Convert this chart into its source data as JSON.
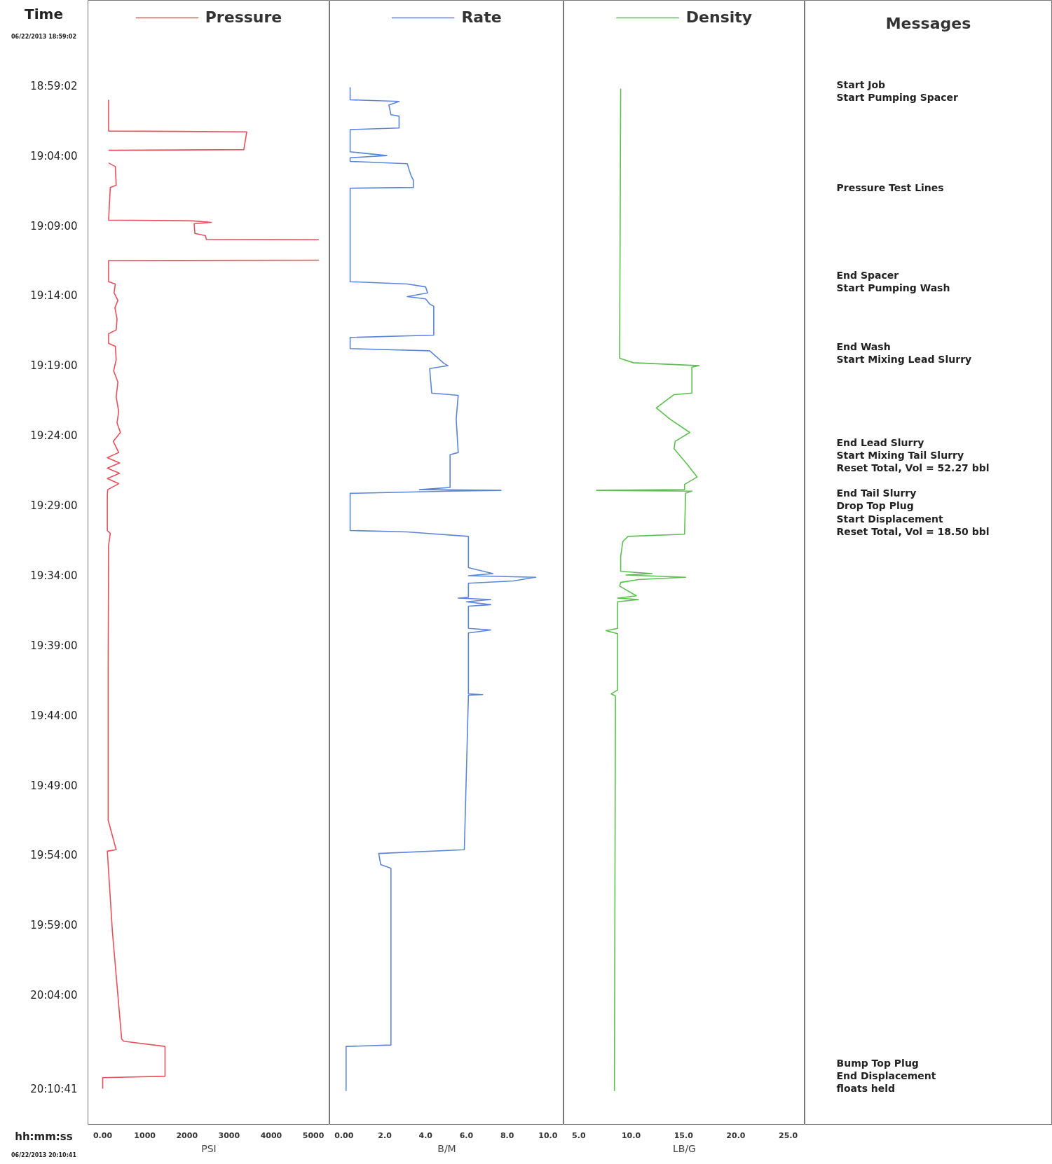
{
  "chart_data": [
    {
      "type": "line",
      "orientation": "horizontal",
      "legend": "top",
      "xlabel": "PSI",
      "xlim": [
        -350,
        5390
      ],
      "xticks": [
        {
          "value": 0,
          "label": "0.00"
        },
        1000,
        2000,
        3000,
        4000,
        5000
      ],
      "ylim": [
        20.2205,
        18.8813
      ],
      "yticks": [
        {
          "value": 18.98389,
          "label": "18:59:02"
        },
        {
          "value": 19.06667,
          "label": "19:04:00"
        },
        {
          "value": 19.15,
          "label": "19:09:00"
        },
        {
          "value": 19.23333,
          "label": "19:14:00"
        },
        {
          "value": 19.31667,
          "label": "19:19:00"
        },
        {
          "value": 19.4,
          "label": "19:24:00"
        },
        {
          "value": 19.48333,
          "label": "19:29:00"
        },
        {
          "value": 19.56667,
          "label": "19:34:00"
        },
        {
          "value": 19.65,
          "label": "19:39:00"
        },
        {
          "value": 19.73333,
          "label": "19:44:00"
        },
        {
          "value": 19.81667,
          "label": "19:49:00"
        },
        {
          "value": 19.9,
          "label": "19:54:00"
        },
        {
          "value": 19.98333,
          "label": "19:59:00"
        },
        {
          "value": 20.06667,
          "label": "20:04:00"
        },
        {
          "value": 20.17806,
          "label": "20:10:41"
        }
      ],
      "annotations": [
        "Time",
        "06/22/2013 18:59:02",
        "hh:mm:ss",
        "06/22/2013 20:10:41"
      ],
      "series": [
        {
          "name": "Pressure",
          "color": "#e8505b",
          "x": [
            18.9998,
            19.037,
            19.0379,
            19.0591,
            19.06,
            19.0675,
            19.075,
            19.0794,
            19.1015,
            19.1042,
            19.1431,
            19.144,
            19.1458,
            19.1475,
            19.159,
            19.1617,
            19.1661,
            19.1665,
            19.178,
            19.1909,
            19.1913,
            19.2165,
            19.2192,
            19.2298,
            19.2387,
            19.2475,
            19.2608,
            19.274,
            19.2785,
            19.29,
            19.2935,
            19.3094,
            19.3227,
            19.336,
            19.3537,
            19.3713,
            19.3846,
            19.3961,
            19.4067,
            19.42,
            19.4262,
            19.4324,
            19.4386,
            19.4448,
            19.451,
            19.4571,
            19.4642,
            19.4704,
            19.5129,
            19.5164,
            19.5306,
            19.6809,
            19.8579,
            19.8932,
            19.895,
            19.9905,
            20.1188,
            20.1214,
            20.1276,
            20.163,
            20.1648,
            20.178
          ],
          "values": [
            140,
            140,
            3420,
            3350,
            140,
            null,
            140,
            300,
            320,
            180,
            140,
            2140,
            2580,
            2170,
            2190,
            2440,
            2460,
            5130,
            null,
            5130,
            140,
            140,
            300,
            270,
            360,
            290,
            340,
            320,
            140,
            140,
            300,
            320,
            260,
            360,
            320,
            380,
            340,
            420,
            250,
            380,
            110,
            400,
            110,
            400,
            110,
            380,
            120,
            110,
            110,
            180,
            140,
            130,
            130,
            320,
            110,
            230,
            450,
            500,
            1480,
            1480,
            0,
            0
          ]
        }
      ]
    },
    {
      "type": "line",
      "orientation": "horizontal",
      "legend": "top",
      "xlabel": "B/M",
      "tick_labels": "x",
      "xlim": [
        -0.7,
        10.78
      ],
      "xticks": [
        {
          "value": 0,
          "label": "0.00"
        },
        {
          "value": 2,
          "label": "2.0"
        },
        {
          "value": 4,
          "label": "4.0"
        },
        {
          "value": 6,
          "label": "6.0"
        },
        {
          "value": 8,
          "label": "8.0"
        },
        {
          "value": 10,
          "label": "10.0"
        }
      ],
      "ylim": [
        20.2205,
        18.8813
      ],
      "series": [
        {
          "name": "Rate",
          "color": "#5b85d9",
          "x": [
            18.9848,
            18.9998,
            19.0016,
            19.006,
            19.0175,
            19.0193,
            19.0334,
            19.0352,
            19.0617,
            19.0662,
            19.0688,
            19.0732,
            19.0759,
            19.0839,
            19.0909,
            19.0954,
            19.1042,
            19.1051,
            19.2165,
            19.2192,
            19.2227,
            19.2298,
            19.2342,
            19.2369,
            19.2431,
            19.2457,
            19.2802,
            19.2829,
            19.2962,
            19.2988,
            19.3138,
            19.3165,
            19.32,
            19.3492,
            19.3519,
            19.3802,
            19.42,
            19.4226,
            19.4616,
            19.4642,
            19.4651,
            19.466,
            19.4686,
            19.5129,
            19.5146,
            19.5199,
            19.5571,
            19.5642,
            19.5668,
            19.5686,
            19.573,
            19.5757,
            19.5925,
            19.5934,
            19.5951,
            19.5978,
            19.6013,
            19.6031,
            19.6296,
            19.6314,
            19.6349,
            19.7075,
            19.7084,
            19.7092,
            19.8932,
            19.8977,
            19.9109,
            19.9154,
            20.1259,
            20.1276,
            20.1807
          ],
          "values": [
            0.3,
            0.3,
            2.7,
            2.2,
            2.3,
            2.7,
            2.7,
            0.3,
            0.3,
            2.1,
            0.3,
            0.3,
            3.1,
            3.2,
            3.3,
            3.4,
            3.4,
            0.3,
            0.3,
            3.1,
            4.0,
            4.1,
            3.1,
            4.0,
            4.2,
            4.4,
            4.4,
            0.3,
            0.3,
            4.2,
            4.9,
            5.1,
            4.2,
            4.3,
            5.6,
            5.5,
            5.6,
            5.2,
            5.2,
            3.7,
            7.7,
            5.2,
            0.3,
            0.3,
            3.1,
            6.1,
            6.1,
            7.3,
            6.1,
            9.4,
            8.3,
            6.1,
            6.1,
            5.6,
            7.2,
            6.0,
            7.2,
            6.1,
            6.1,
            7.2,
            6.1,
            6.1,
            6.8,
            6.1,
            5.9,
            1.7,
            1.8,
            2.3,
            2.3,
            0.1,
            0.1
          ]
        }
      ]
    },
    {
      "type": "line",
      "orientation": "horizontal",
      "legend": "top",
      "xlabel": "LB/G",
      "tick_labels": "x",
      "xlim": [
        3.57,
        26.6
      ],
      "xticks": [
        {
          "value": 5,
          "label": "5.0"
        },
        {
          "value": 10,
          "label": "10.0"
        },
        {
          "value": 15,
          "label": "15.0"
        },
        {
          "value": 20,
          "label": "20.0"
        },
        {
          "value": 25,
          "label": "25.0"
        }
      ],
      "ylim": [
        20.2205,
        18.8813
      ],
      "series": [
        {
          "name": "Density",
          "color": "#5cbf4f",
          "x": [
            18.9865,
            19.3077,
            19.313,
            19.3165,
            19.3183,
            19.3492,
            19.351,
            19.3669,
            19.3802,
            19.3961,
            19.4067,
            19.4156,
            19.4333,
            19.4492,
            19.458,
            19.4642,
            19.4651,
            19.466,
            19.4686,
            19.5173,
            19.5199,
            19.5261,
            19.5438,
            19.5615,
            19.5642,
            19.5659,
            19.5686,
            19.5713,
            19.5748,
            19.5792,
            19.5907,
            19.5934,
            19.5951,
            19.5978,
            19.6296,
            19.6323,
            19.6358,
            19.7031,
            19.7075,
            19.7101,
            20.1807
          ],
          "values": [
            9.0,
            8.9,
            10.2,
            16.5,
            15.8,
            15.8,
            14.1,
            12.4,
            13.7,
            15.6,
            14.2,
            14.1,
            15.3,
            16.3,
            15.1,
            15.1,
            6.7,
            15.8,
            15.2,
            15.1,
            9.7,
            9.2,
            9.0,
            9.0,
            12.0,
            9.5,
            15.2,
            10.7,
            9.0,
            8.9,
            10.5,
            8.7,
            10.7,
            8.7,
            8.7,
            7.6,
            8.7,
            8.7,
            8.1,
            8.5,
            8.4
          ]
        }
      ]
    },
    {
      "type": "other",
      "title": "Messages",
      "annotations": [
        "Start Job",
        "Start Pumping Spacer",
        "Pressure Test Lines",
        "End Spacer",
        "Start Pumping Wash",
        "End Wash",
        "Start Mixing Lead Slurry",
        "End Lead Slurry",
        "Start Mixing Tail Slurry",
        "Reset Total, Vol = 52.27  bbl",
        "End Tail Slurry",
        "Drop Top Plug",
        "Start Displacement",
        "Reset Total, Vol = 18.50  bbl",
        "Bump Top Plug",
        "End Displacement",
        "floats held"
      ]
    }
  ]
}
